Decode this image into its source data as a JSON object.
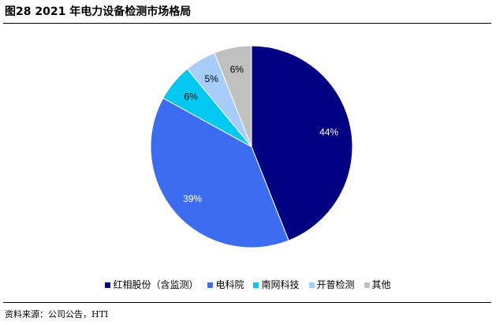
{
  "figure": {
    "title": "图28 2021 年电力设备检测市场格局",
    "source": "资料来源：公司公告，HTI"
  },
  "chart_data": {
    "type": "pie",
    "title": "",
    "slices": [
      {
        "label": "红相股份（含监测）",
        "value": 44,
        "display": "44%",
        "color": "#000080",
        "label_color": "#ffffff"
      },
      {
        "label": "电科院",
        "value": 39,
        "display": "39%",
        "color": "#3c6cf0",
        "label_color": "#ffffff"
      },
      {
        "label": "南网科技",
        "value": 6,
        "display": "6%",
        "color": "#00c8f0",
        "label_color": "#000000"
      },
      {
        "label": "开普检测",
        "value": 5,
        "display": "5%",
        "color": "#a6cdf7",
        "label_color": "#000000"
      },
      {
        "label": "其他",
        "value": 6,
        "display": "6%",
        "color": "#c0c0c0",
        "label_color": "#000000"
      }
    ],
    "start_angle_deg": 0,
    "direction": "clockwise",
    "legend_position": "bottom"
  }
}
